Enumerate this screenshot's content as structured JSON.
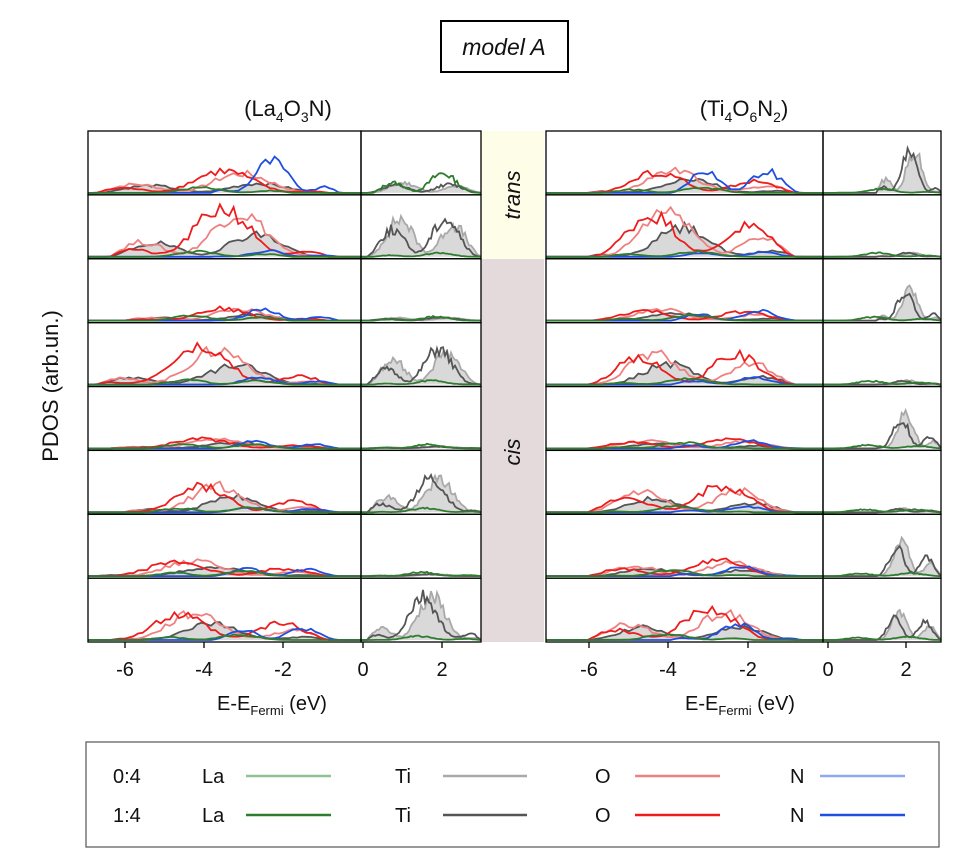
{
  "chart_data": {
    "type": "line",
    "title": "model A",
    "ylabel": "PDOS (arb.un.)",
    "xlabel_main": "E-E",
    "xlabel_sub": "Fermi",
    "xlabel_unit": " (eV)",
    "panel_groups": [
      {
        "label_main": "(La",
        "label_parts": [
          "4",
          "O",
          "3",
          "N)"
        ],
        "xlim_left": [
          -7,
          0
        ],
        "xlim_right": [
          0,
          3
        ],
        "xticks_left": [
          -6,
          -4,
          -2
        ],
        "xticks_right": [
          0,
          2
        ]
      },
      {
        "label_main": "(Ti",
        "label_parts": [
          "4",
          "O",
          "6",
          "N",
          "2",
          ")"
        ],
        "xlim_left": [
          -7,
          0
        ],
        "xlim_right": [
          0,
          3
        ],
        "xticks_left": [
          -6,
          -4,
          -2
        ],
        "xticks_right": [
          0,
          2
        ]
      }
    ],
    "tick_labels": {
      "m6": "-6",
      "m4": "-4",
      "m2": "-2",
      "z": "0",
      "p2": "2"
    },
    "configurations": {
      "trans": "trans",
      "cis": "cis"
    },
    "rows": 8,
    "trans_rows": 2,
    "series": [
      {
        "name": "La 0:4",
        "color": "#8fc28f"
      },
      {
        "name": "La 1:4",
        "color": "#2e7d2e"
      },
      {
        "name": "Ti 0:4",
        "color": "#a9a9a9"
      },
      {
        "name": "Ti 1:4",
        "color": "#555555"
      },
      {
        "name": "O 0:4",
        "color": "#f08080"
      },
      {
        "name": "O 1:4",
        "color": "#ee1c1c"
      },
      {
        "name": "N 0:4",
        "color": "#8fa8f0"
      },
      {
        "name": "N 1:4",
        "color": "#1f4fe0"
      }
    ],
    "legend": {
      "rows": [
        {
          "ratio": "0:4",
          "items": [
            {
              "label": "La",
              "color": "#8fc28f"
            },
            {
              "label": "Ti",
              "color": "#a9a9a9"
            },
            {
              "label": "O",
              "color": "#f08080"
            },
            {
              "label": "N",
              "color": "#8fa8f0"
            }
          ]
        },
        {
          "ratio": "1:4",
          "items": [
            {
              "label": "La",
              "color": "#2e7d2e"
            },
            {
              "label": "Ti",
              "color": "#555555"
            },
            {
              "label": "O",
              "color": "#ee1c1c"
            },
            {
              "label": "N",
              "color": "#1f4fe0"
            }
          ]
        }
      ],
      "placement": "bottom"
    },
    "colors": {
      "trans_band": "#fefde8",
      "cis_band": "#e4dadc",
      "fill": "#d9d9d9"
    }
  }
}
